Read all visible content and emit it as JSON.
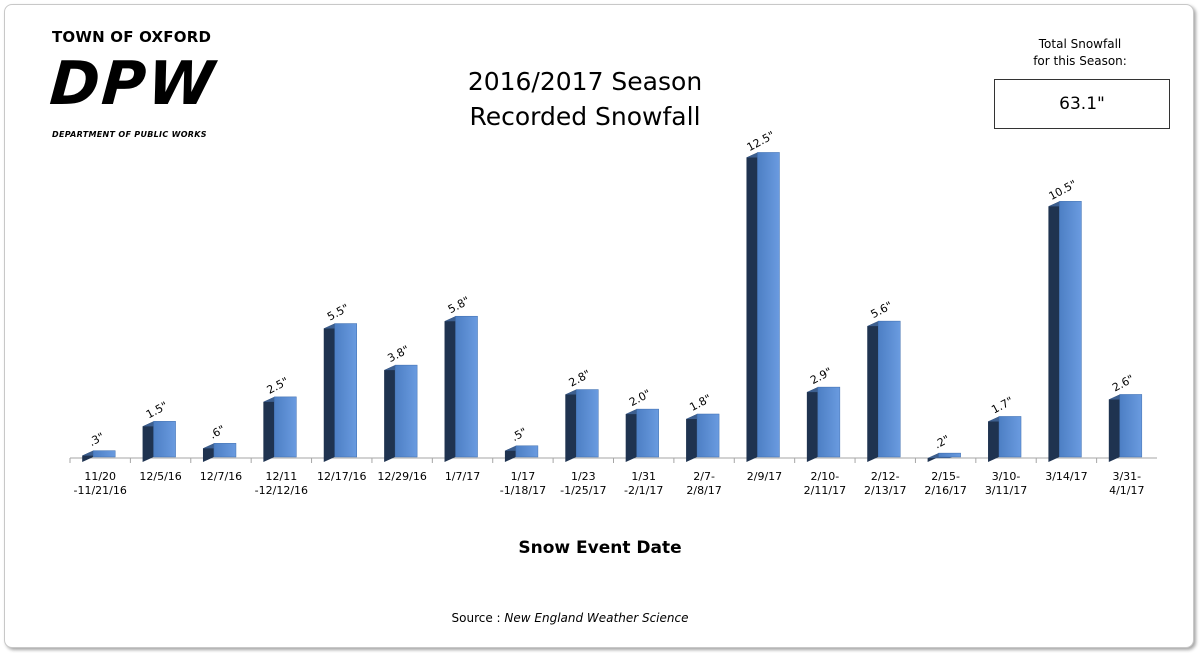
{
  "header": {
    "org_name": "TOWN OF OXFORD",
    "logo_text": "DPW",
    "dept_line": "DEPARTMENT OF PUBLIC WORKS"
  },
  "summary": {
    "label_line1": "Total Snowfall",
    "label_line2": "for this Season:",
    "value": "63.1\""
  },
  "footer": {
    "source_prefix": "Source :",
    "source_name": "New England Weather Science"
  },
  "colors": {
    "bar_light": "#5b8fd6",
    "bar_dark": "#1f3350",
    "axis": "#a6a6a6"
  },
  "chart_data": {
    "type": "bar",
    "title": "2016/2017 Season\nRecorded Snowfall",
    "xlabel": "Snow Event Date",
    "ylabel": "",
    "grid": false,
    "legend": "none",
    "ylim": [
      0,
      13.5
    ],
    "categories": [
      "11/20\n-11/21/16",
      "12/5/16",
      "12/7/16",
      "12/11\n-12/12/16",
      "12/17/16",
      "12/29/16",
      "1/7/17",
      "1/17\n-1/18/17",
      "1/23\n-1/25/17",
      "1/31\n-2/1/17",
      "2/7-\n2/8/17",
      "2/9/17",
      "2/10-\n2/11/17",
      "2/12-\n2/13/17",
      "2/15-\n2/16/17",
      "3/10-\n3/11/17",
      "3/14/17",
      "3/31-\n4/1/17"
    ],
    "values": [
      0.3,
      1.5,
      0.6,
      2.5,
      5.5,
      3.8,
      5.8,
      0.5,
      2.8,
      2.0,
      1.8,
      12.5,
      2.9,
      5.6,
      0.2,
      1.7,
      10.5,
      2.6
    ],
    "data_labels": [
      ".3\"",
      "1.5\"",
      ".6\"",
      "2.5\"",
      "5.5\"",
      "3.8\"",
      "5.8\"",
      ".5\"",
      "2.8\"",
      "2.0\"",
      "1.8\"",
      "12.5\"",
      "2.9\"",
      "5.6\"",
      ".2\"",
      "1.7\"",
      "10.5\"",
      "2.6\""
    ]
  }
}
